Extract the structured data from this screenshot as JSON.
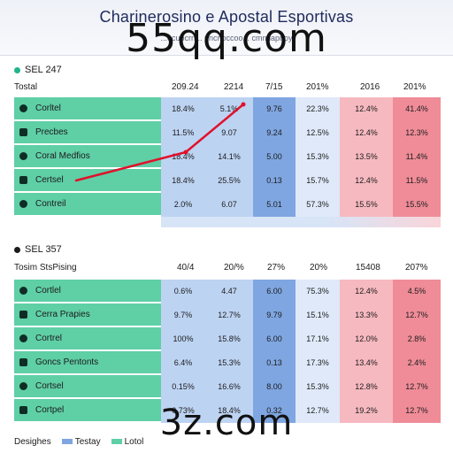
{
  "header": {
    "title": "Charinerosino e Apostal Esportivas",
    "subtitle": "...ocupcrn... nncnoccoo... cmmlapnoy"
  },
  "watermarks": {
    "top": "55qq.com",
    "bottom": "3z.com"
  },
  "colors": {
    "green": "#5fcfa6",
    "blue": "#7fa6e1",
    "red": "#ef8c98",
    "trend_line": "#e0112a"
  },
  "section1": {
    "label": "SEL 247",
    "dot_color": "#20b58a",
    "row_header": "Tostal",
    "columns": [
      "209.24",
      "2214",
      "7/15",
      "201%",
      "2016",
      "201%"
    ],
    "rows": [
      {
        "name": "Corltel",
        "icon": "circle-icon",
        "values": [
          "18.4%",
          "5.1%",
          "9.76",
          "22.3%",
          "12.4%",
          "41.4%"
        ]
      },
      {
        "name": "Precbes",
        "icon": "square-icon",
        "values": [
          "11.5%",
          "9.07",
          "9.24",
          "12.5%",
          "12.4%",
          "12.3%"
        ]
      },
      {
        "name": "Coral Medfios",
        "icon": "circle-icon",
        "values": [
          "18.4%",
          "14.1%",
          "5.00",
          "15.3%",
          "13.5%",
          "11.4%"
        ]
      },
      {
        "name": "Certsel",
        "icon": "square-icon",
        "values": [
          "18.4%",
          "25.5%",
          "0.13",
          "15.7%",
          "12.4%",
          "11.5%"
        ]
      },
      {
        "name": "Contreil",
        "icon": "circle-icon",
        "values": [
          "2.0%",
          "6.07",
          "5.01",
          "57.3%",
          "15.5%",
          "15.5%"
        ]
      }
    ]
  },
  "section2": {
    "label": "SEL 357",
    "dot_color": "#1b1b1b",
    "row_header": "Tosim StsPising",
    "columns": [
      "40/4",
      "20/%",
      "27%",
      "20%",
      "15408",
      "207%"
    ],
    "rows": [
      {
        "name": "Cortlel",
        "icon": "circle-icon",
        "values": [
          "0.6%",
          "4.47",
          "6.00",
          "75.3%",
          "12.4%",
          "4.5%"
        ]
      },
      {
        "name": "Cerra Prapies",
        "icon": "square-icon",
        "values": [
          "9.7%",
          "12.7%",
          "9.79",
          "15.1%",
          "13.3%",
          "12.7%"
        ]
      },
      {
        "name": "Cortrel",
        "icon": "circle-icon",
        "values": [
          "100%",
          "15.8%",
          "6.00",
          "17.1%",
          "12.0%",
          "2.8%"
        ]
      },
      {
        "name": "Goncs Pentonts",
        "icon": "square-icon",
        "values": [
          "6.4%",
          "15.3%",
          "0.13",
          "17.3%",
          "13.4%",
          "2.4%"
        ]
      },
      {
        "name": "Cortsel",
        "icon": "circle-icon",
        "values": [
          "0.15%",
          "16.6%",
          "8.00",
          "15.3%",
          "12.8%",
          "12.7%"
        ]
      },
      {
        "name": "Cortpel",
        "icon": "square-icon",
        "values": [
          "0.73%",
          "18.4%",
          "0.32",
          "12.7%",
          "19.2%",
          "12.7%"
        ]
      }
    ]
  },
  "legend": [
    {
      "label": "Desighes",
      "color": ""
    },
    {
      "label": "Testay",
      "color": "#7fa6e1"
    },
    {
      "label": "Lotol",
      "color": "#5fcfa6"
    }
  ]
}
